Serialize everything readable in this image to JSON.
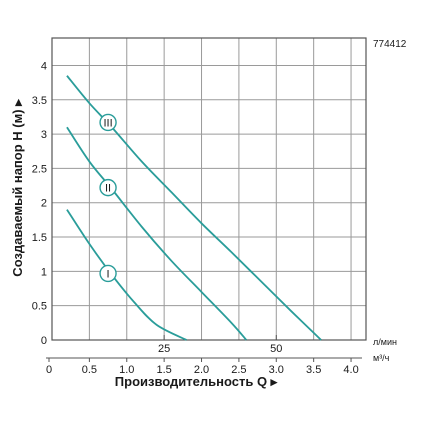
{
  "chart_data": {
    "type": "line",
    "product_code": "774412",
    "ylabel": "Создаваемый напор H (м) ▸",
    "xlabel": "Производительность Q ▸",
    "x_unit_top": "л/мин",
    "x_unit_bottom": "м³/ч",
    "x_axis_m3h": {
      "ticks": [
        0,
        0.5,
        1.0,
        1.5,
        2.0,
        2.5,
        3.0,
        3.5,
        4.0
      ],
      "tick_labels": [
        "0",
        "0.5",
        "1.0",
        "1.5",
        "2.0",
        "2.5",
        "3.0",
        "3.5",
        "4.0"
      ],
      "range": [
        0,
        4.2
      ]
    },
    "x_axis_lmin": {
      "ticks": [
        25,
        50
      ],
      "tick_labels": [
        "25",
        "50"
      ]
    },
    "y_axis": {
      "ticks": [
        0,
        0.5,
        1,
        1.5,
        2,
        2.5,
        3,
        3.5,
        4
      ],
      "tick_labels": [
        "0",
        "0.5",
        "1",
        "1.5",
        "2",
        "2.5",
        "3",
        "3.5",
        "4"
      ],
      "range": [
        0,
        4.4
      ]
    },
    "grid": true,
    "series": [
      {
        "name": "I",
        "color": "#2a9d9a",
        "x": [
          0.2,
          0.5,
          0.8,
          1.1,
          1.4,
          1.8
        ],
        "y": [
          1.9,
          1.4,
          0.95,
          0.55,
          0.22,
          0.0
        ]
      },
      {
        "name": "II",
        "color": "#2a9d9a",
        "x": [
          0.2,
          0.5,
          0.8,
          1.2,
          1.6,
          2.0,
          2.4,
          2.6
        ],
        "y": [
          3.1,
          2.6,
          2.2,
          1.65,
          1.15,
          0.7,
          0.25,
          0.0
        ]
      },
      {
        "name": "III",
        "color": "#2a9d9a",
        "x": [
          0.2,
          0.5,
          0.8,
          1.2,
          1.6,
          2.0,
          2.4,
          2.8,
          3.2,
          3.6
        ],
        "y": [
          3.85,
          3.45,
          3.1,
          2.6,
          2.15,
          1.7,
          1.28,
          0.85,
          0.42,
          0.0
        ]
      }
    ],
    "curve_labels": [
      {
        "text": "I",
        "x": 0.75,
        "y": 0.97
      },
      {
        "text": "II",
        "x": 0.75,
        "y": 2.22
      },
      {
        "text": "III",
        "x": 0.75,
        "y": 3.17
      }
    ]
  }
}
